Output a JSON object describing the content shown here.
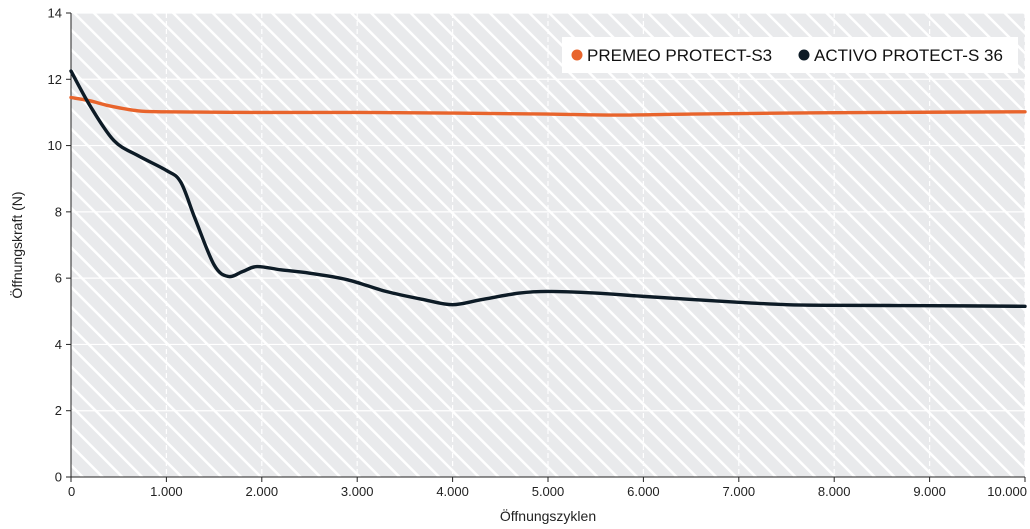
{
  "chart_data": {
    "type": "line",
    "title": "",
    "xlabel": "Öffnungszyklen",
    "ylabel": "Öffnungskraft (N)",
    "xlim": [
      0,
      10000
    ],
    "ylim": [
      0,
      14
    ],
    "x_ticks": [
      {
        "value": 0,
        "label": "0"
      },
      {
        "value": 1000,
        "label": "1.000"
      },
      {
        "value": 2000,
        "label": "2.000"
      },
      {
        "value": 3000,
        "label": "3.000"
      },
      {
        "value": 4000,
        "label": "4.000"
      },
      {
        "value": 5000,
        "label": "5.000"
      },
      {
        "value": 6000,
        "label": "6.000"
      },
      {
        "value": 7000,
        "label": "7.000"
      },
      {
        "value": 8000,
        "label": "8.000"
      },
      {
        "value": 9000,
        "label": "9.000"
      },
      {
        "value": 10000,
        "label": "10.000"
      }
    ],
    "y_ticks": [
      {
        "value": 0,
        "label": "0"
      },
      {
        "value": 2,
        "label": "2"
      },
      {
        "value": 4,
        "label": "4"
      },
      {
        "value": 6,
        "label": "6"
      },
      {
        "value": 8,
        "label": "8"
      },
      {
        "value": 10,
        "label": "10"
      },
      {
        "value": 12,
        "label": "12"
      },
      {
        "value": 14,
        "label": "14"
      }
    ],
    "grid": true,
    "legend_position": "top-right",
    "series": [
      {
        "name": "PREMEO PROTECT-S3",
        "color": "#e8642c",
        "points": [
          [
            0,
            11.45
          ],
          [
            200,
            11.35
          ],
          [
            400,
            11.2
          ],
          [
            700,
            11.05
          ],
          [
            1000,
            11.02
          ],
          [
            2000,
            11.0
          ],
          [
            3000,
            11.0
          ],
          [
            4000,
            10.98
          ],
          [
            5000,
            10.95
          ],
          [
            5700,
            10.92
          ],
          [
            6500,
            10.95
          ],
          [
            7500,
            10.98
          ],
          [
            8500,
            11.0
          ],
          [
            10000,
            11.02
          ]
        ]
      },
      {
        "name": "ACTIVO PROTECT-S 36",
        "color": "#0d1b26",
        "points": [
          [
            0,
            12.25
          ],
          [
            200,
            11.2
          ],
          [
            450,
            10.15
          ],
          [
            700,
            9.7
          ],
          [
            1000,
            9.25
          ],
          [
            1150,
            8.9
          ],
          [
            1300,
            7.8
          ],
          [
            1500,
            6.4
          ],
          [
            1650,
            6.05
          ],
          [
            1800,
            6.2
          ],
          [
            1950,
            6.35
          ],
          [
            2200,
            6.25
          ],
          [
            2500,
            6.15
          ],
          [
            2900,
            5.95
          ],
          [
            3300,
            5.6
          ],
          [
            3700,
            5.35
          ],
          [
            4000,
            5.2
          ],
          [
            4300,
            5.35
          ],
          [
            4700,
            5.55
          ],
          [
            5000,
            5.6
          ],
          [
            5500,
            5.55
          ],
          [
            6000,
            5.45
          ],
          [
            7000,
            5.27
          ],
          [
            7500,
            5.2
          ],
          [
            8000,
            5.18
          ],
          [
            9000,
            5.17
          ],
          [
            10000,
            5.15
          ]
        ]
      }
    ]
  }
}
